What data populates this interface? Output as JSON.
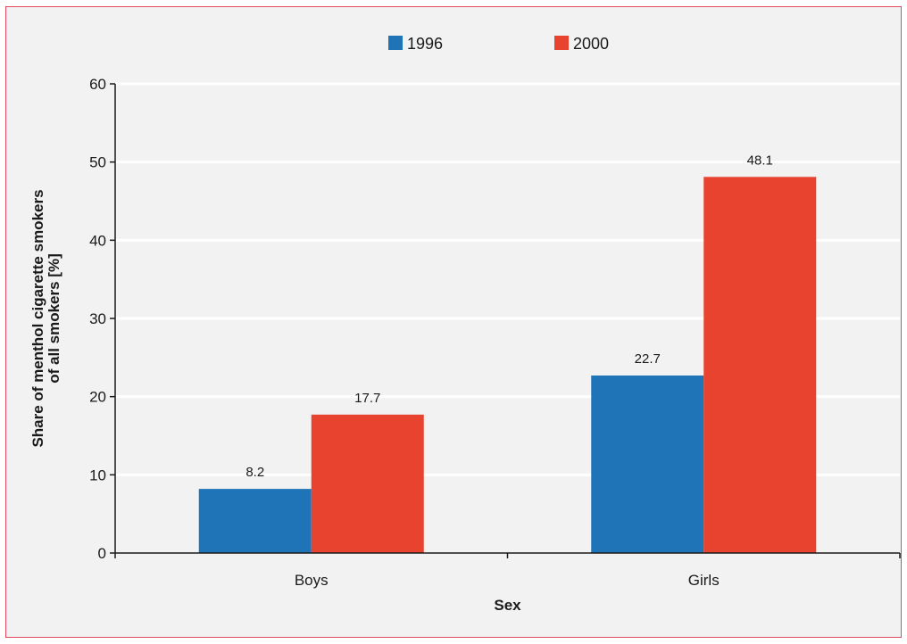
{
  "chart_data": {
    "type": "bar",
    "categories": [
      "Boys",
      "Girls"
    ],
    "series": [
      {
        "name": "1996",
        "values": [
          8.2,
          22.7
        ],
        "color": "#1f73b7"
      },
      {
        "name": "2000",
        "values": [
          17.7,
          48.1
        ],
        "color": "#e8432e"
      }
    ],
    "xlabel": "Sex",
    "ylabel_lines": [
      "Share of menthol cigarette smokers",
      "of all smokers [%]"
    ],
    "ylim": [
      0,
      60
    ],
    "yticks": [
      0,
      10,
      20,
      30,
      40,
      50,
      60
    ],
    "grid": true,
    "legend_position": "top-center",
    "colors": {
      "background": "#f2f2f3",
      "border": "#e2475a",
      "gridline": "#ffffff",
      "axis": "#1a1a1a"
    }
  }
}
